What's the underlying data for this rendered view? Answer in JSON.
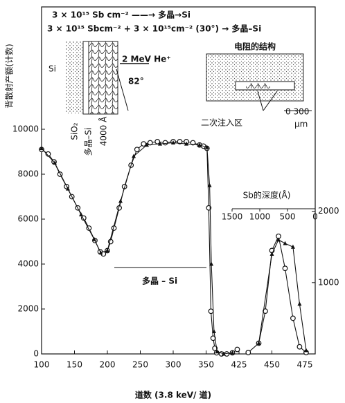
{
  "chart_data": {
    "type": "line",
    "y_label": "背散射产额(计数)",
    "x_label": "道数  (3.8 keV/ 道)",
    "annotations": {
      "line1": "3 × 10¹⁵ Sb cm⁻² ——→ 多晶→Si",
      "line2": "3 × 10¹⁵ Sbcm⁻² + 3 × 10¹⁵cm⁻² (30°) → 多晶–Si",
      "si": "Si",
      "beam": "2 MeV He⁺",
      "angle": "82°",
      "sio2": "SiO₂",
      "poly": "多晶–Si",
      "thickness": "4000 Å",
      "structure": "电阻的结构",
      "scale": "0  300",
      "unit": "μm",
      "implant": "二次注入区",
      "poly_region": "多晶 – Si"
    },
    "top_axis_label": "Sb的深度(Å)",
    "x2lim": [
      1500,
      0
    ],
    "x2ticks": [
      1500,
      1000,
      500,
      0
    ],
    "xlim": [
      100,
      480
    ],
    "xticks": [
      100,
      150,
      200,
      250,
      300,
      350,
      425,
      450,
      475
    ],
    "ylim": [
      0,
      10000
    ],
    "yticks": [
      0,
      2000,
      4000,
      6000,
      8000,
      10000
    ],
    "y2lim": [
      0,
      3150
    ],
    "y2ticks": [
      1000,
      2000
    ],
    "series": [
      {
        "marker": "circle",
        "color": "#111",
        "x": [
          100,
          110,
          119,
          128,
          138,
          146,
          155,
          164,
          172,
          181,
          189,
          194,
          200,
          205,
          210,
          218,
          226,
          236,
          245,
          255,
          265,
          276,
          288,
          300,
          310,
          320,
          330,
          340,
          346,
          352,
          356,
          361,
          366,
          370,
          374,
          385,
          397,
          410,
          421
        ],
        "values": [
          9100,
          8900,
          8550,
          8000,
          7450,
          7000,
          6500,
          6050,
          5600,
          5050,
          4550,
          4450,
          4600,
          5000,
          5600,
          6500,
          7450,
          8400,
          9100,
          9350,
          9400,
          9450,
          9400,
          9450,
          9450,
          9450,
          9400,
          9300,
          9250,
          9150,
          6500,
          1900,
          700,
          250,
          50,
          0,
          0,
          50,
          200
        ]
      },
      {
        "marker": "triangle",
        "color": "#111",
        "x": [
          100,
          120,
          140,
          160,
          180,
          190,
          200,
          220,
          240,
          260,
          280,
          300,
          320,
          340,
          352,
          358,
          362,
          368,
          375,
          390,
          410
        ],
        "values": [
          9150,
          8500,
          7350,
          6200,
          5100,
          4500,
          4600,
          6800,
          8800,
          9300,
          9350,
          9400,
          9350,
          9300,
          9200,
          7500,
          4000,
          1000,
          100,
          0,
          50
        ]
      },
      {
        "marker": "circle",
        "color": "#111",
        "axis": "y2",
        "x": [
          432,
          440,
          445,
          450,
          455,
          460,
          466,
          471,
          476
        ],
        "values": [
          20,
          150,
          600,
          1450,
          1650,
          1200,
          500,
          100,
          20
        ]
      },
      {
        "marker": "triangle",
        "color": "#111",
        "axis": "y2",
        "x": [
          440,
          450,
          455,
          460,
          466,
          471,
          476
        ],
        "values": [
          150,
          1400,
          1600,
          1550,
          1500,
          700,
          50
        ]
      }
    ]
  }
}
